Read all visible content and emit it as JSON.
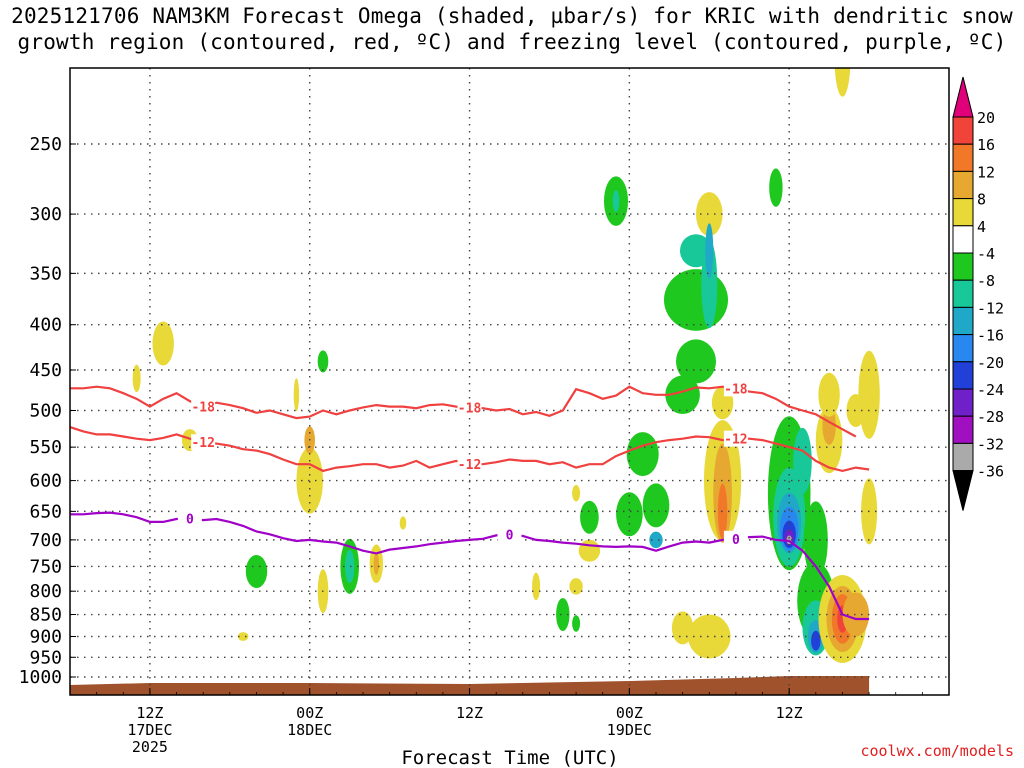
{
  "chart_data": {
    "type": "heatmap",
    "title_line1": "2025121706 NAM3KM Forecast Omega (shaded, µbar/s) for KRIC with dendritic snow",
    "title_line2": "growth region (contoured, red, ºC) and freezing level (contoured, purple, ºC)",
    "xlabel": "Forecast Time (UTC)",
    "ylabel_pressure_levels": [
      "250",
      "300",
      "350",
      "400",
      "450",
      "500",
      "550",
      "600",
      "650",
      "700",
      "750",
      "800",
      "850",
      "900",
      "950",
      "1000"
    ],
    "y_values": [
      250,
      300,
      350,
      400,
      450,
      500,
      550,
      600,
      650,
      700,
      750,
      800,
      850,
      900,
      950,
      1000
    ],
    "x_range_hours": [
      6,
      72
    ],
    "x_ticks": [
      {
        "hour": 12,
        "line1": "12Z",
        "line2": "17DEC",
        "line3": "2025"
      },
      {
        "hour": 24,
        "line1": "00Z",
        "line2": "18DEC",
        "line3": ""
      },
      {
        "hour": 36,
        "line1": "12Z",
        "line2": "",
        "line3": ""
      },
      {
        "hour": 48,
        "line1": "00Z",
        "line2": "19DEC",
        "line3": ""
      },
      {
        "hour": 60,
        "line1": "12Z",
        "line2": "",
        "line3": ""
      }
    ],
    "colorbar": {
      "labels": [
        "20",
        "16",
        "12",
        "8",
        "4",
        "-4",
        "-8",
        "-12",
        "-16",
        "-20",
        "-24",
        "-28",
        "-32",
        "-36"
      ],
      "bins": [
        {
          "range": ">20",
          "color": "#e0007a"
        },
        {
          "range": "16 to 20",
          "color": "#f0443a"
        },
        {
          "range": "12 to 16",
          "color": "#f07828"
        },
        {
          "range": "8 to 12",
          "color": "#e6a830"
        },
        {
          "range": "4 to 8",
          "color": "#e8d838"
        },
        {
          "range": "-4 to 4",
          "color": "#ffffff"
        },
        {
          "range": "-8 to -4",
          "color": "#1ec81e"
        },
        {
          "range": "-12 to -8",
          "color": "#18c898"
        },
        {
          "range": "-16 to -12",
          "color": "#20a8c8"
        },
        {
          "range": "-20 to -16",
          "color": "#2888f0"
        },
        {
          "range": "-24 to -20",
          "color": "#2040d8"
        },
        {
          "range": "-28 to -24",
          "color": "#7020c8"
        },
        {
          "range": "-32 to -28",
          "color": "#a010c0"
        },
        {
          "range": "-36 to -32",
          "color": "#aaaaaa"
        },
        {
          "range": "<-36",
          "color": "#000000"
        }
      ]
    },
    "contours": [
      {
        "name": "-18C",
        "label": "-18",
        "color": "#f04040",
        "points": [
          [
            6,
            472
          ],
          [
            7,
            472
          ],
          [
            8,
            470
          ],
          [
            9,
            472
          ],
          [
            10,
            478
          ],
          [
            11,
            485
          ],
          [
            12,
            495
          ],
          [
            13,
            485
          ],
          [
            14,
            478
          ],
          [
            15,
            488
          ],
          [
            16,
            495
          ],
          [
            17,
            490
          ],
          [
            18,
            493
          ],
          [
            19,
            497
          ],
          [
            20,
            503
          ],
          [
            21,
            500
          ],
          [
            22,
            505
          ],
          [
            23,
            510
          ],
          [
            24,
            508
          ],
          [
            25,
            500
          ],
          [
            26,
            505
          ],
          [
            27,
            500
          ],
          [
            28,
            496
          ],
          [
            29,
            493
          ],
          [
            30,
            495
          ],
          [
            31,
            495
          ],
          [
            32,
            497
          ],
          [
            33,
            493
          ],
          [
            34,
            492
          ],
          [
            35,
            495
          ],
          [
            36,
            496
          ],
          [
            37,
            497
          ],
          [
            38,
            500
          ],
          [
            39,
            498
          ],
          [
            40,
            505
          ],
          [
            41,
            502
          ],
          [
            42,
            507
          ],
          [
            43,
            500
          ],
          [
            44,
            473
          ],
          [
            45,
            478
          ],
          [
            46,
            485
          ],
          [
            47,
            481
          ],
          [
            48,
            470
          ],
          [
            49,
            478
          ],
          [
            50,
            480
          ],
          [
            51,
            480
          ],
          [
            52,
            476
          ],
          [
            53,
            471
          ],
          [
            54,
            472
          ],
          [
            55,
            470
          ],
          [
            56,
            472
          ],
          [
            57,
            476
          ],
          [
            58,
            478
          ],
          [
            59,
            485
          ],
          [
            60,
            495
          ],
          [
            61,
            500
          ],
          [
            62,
            505
          ],
          [
            63,
            515
          ],
          [
            64,
            525
          ],
          [
            65,
            535
          ]
        ]
      },
      {
        "name": "-12C",
        "label": "-12",
        "color": "#f04040",
        "points": [
          [
            6,
            522
          ],
          [
            7,
            528
          ],
          [
            8,
            532
          ],
          [
            9,
            532
          ],
          [
            10,
            535
          ],
          [
            11,
            538
          ],
          [
            12,
            540
          ],
          [
            13,
            537
          ],
          [
            14,
            532
          ],
          [
            15,
            538
          ],
          [
            16,
            543
          ],
          [
            17,
            545
          ],
          [
            18,
            548
          ],
          [
            19,
            553
          ],
          [
            20,
            555
          ],
          [
            21,
            560
          ],
          [
            22,
            568
          ],
          [
            23,
            575
          ],
          [
            24,
            575
          ],
          [
            25,
            585
          ],
          [
            26,
            580
          ],
          [
            27,
            578
          ],
          [
            28,
            575
          ],
          [
            29,
            575
          ],
          [
            30,
            580
          ],
          [
            31,
            577
          ],
          [
            32,
            570
          ],
          [
            33,
            580
          ],
          [
            34,
            575
          ],
          [
            35,
            570
          ],
          [
            36,
            575
          ],
          [
            37,
            575
          ],
          [
            38,
            572
          ],
          [
            39,
            568
          ],
          [
            40,
            570
          ],
          [
            41,
            570
          ],
          [
            42,
            575
          ],
          [
            43,
            572
          ],
          [
            44,
            580
          ],
          [
            45,
            575
          ],
          [
            46,
            575
          ],
          [
            47,
            563
          ],
          [
            48,
            555
          ],
          [
            49,
            548
          ],
          [
            50,
            543
          ],
          [
            51,
            540
          ],
          [
            52,
            538
          ],
          [
            53,
            535
          ],
          [
            54,
            536
          ],
          [
            55,
            540
          ],
          [
            56,
            538
          ],
          [
            57,
            538
          ],
          [
            58,
            540
          ],
          [
            59,
            545
          ],
          [
            60,
            550
          ],
          [
            61,
            555
          ],
          [
            62,
            570
          ],
          [
            63,
            580
          ],
          [
            64,
            585
          ],
          [
            65,
            580
          ],
          [
            66,
            583
          ]
        ]
      },
      {
        "name": "0C",
        "label": "0",
        "color": "#a000c8",
        "points": [
          [
            6,
            655
          ],
          [
            7,
            655
          ],
          [
            8,
            653
          ],
          [
            9,
            652
          ],
          [
            10,
            655
          ],
          [
            11,
            660
          ],
          [
            12,
            668
          ],
          [
            13,
            668
          ],
          [
            14,
            663
          ],
          [
            15,
            662
          ],
          [
            16,
            665
          ],
          [
            17,
            663
          ],
          [
            18,
            668
          ],
          [
            19,
            675
          ],
          [
            20,
            685
          ],
          [
            21,
            690
          ],
          [
            22,
            697
          ],
          [
            23,
            702
          ],
          [
            24,
            700
          ],
          [
            25,
            703
          ],
          [
            26,
            705
          ],
          [
            27,
            712
          ],
          [
            28,
            720
          ],
          [
            29,
            725
          ],
          [
            30,
            718
          ],
          [
            31,
            715
          ],
          [
            32,
            712
          ],
          [
            33,
            708
          ],
          [
            34,
            705
          ],
          [
            35,
            702
          ],
          [
            36,
            700
          ],
          [
            37,
            698
          ],
          [
            38,
            692
          ],
          [
            39,
            690
          ],
          [
            40,
            693
          ],
          [
            41,
            700
          ],
          [
            42,
            702
          ],
          [
            43,
            705
          ],
          [
            44,
            707
          ],
          [
            45,
            710
          ],
          [
            46,
            712
          ],
          [
            47,
            713
          ],
          [
            48,
            712
          ],
          [
            49,
            713
          ],
          [
            50,
            720
          ],
          [
            51,
            712
          ],
          [
            52,
            705
          ],
          [
            53,
            703
          ],
          [
            54,
            705
          ],
          [
            55,
            700
          ],
          [
            56,
            698
          ],
          [
            57,
            695
          ],
          [
            58,
            694
          ],
          [
            59,
            700
          ],
          [
            60,
            702
          ],
          [
            61,
            720
          ],
          [
            62,
            750
          ],
          [
            63,
            790
          ],
          [
            64,
            850
          ],
          [
            65,
            860
          ],
          [
            66,
            860
          ]
        ]
      }
    ],
    "surface_fill_color": "#a0522d",
    "footer_credit": "coolwx.com/models"
  }
}
